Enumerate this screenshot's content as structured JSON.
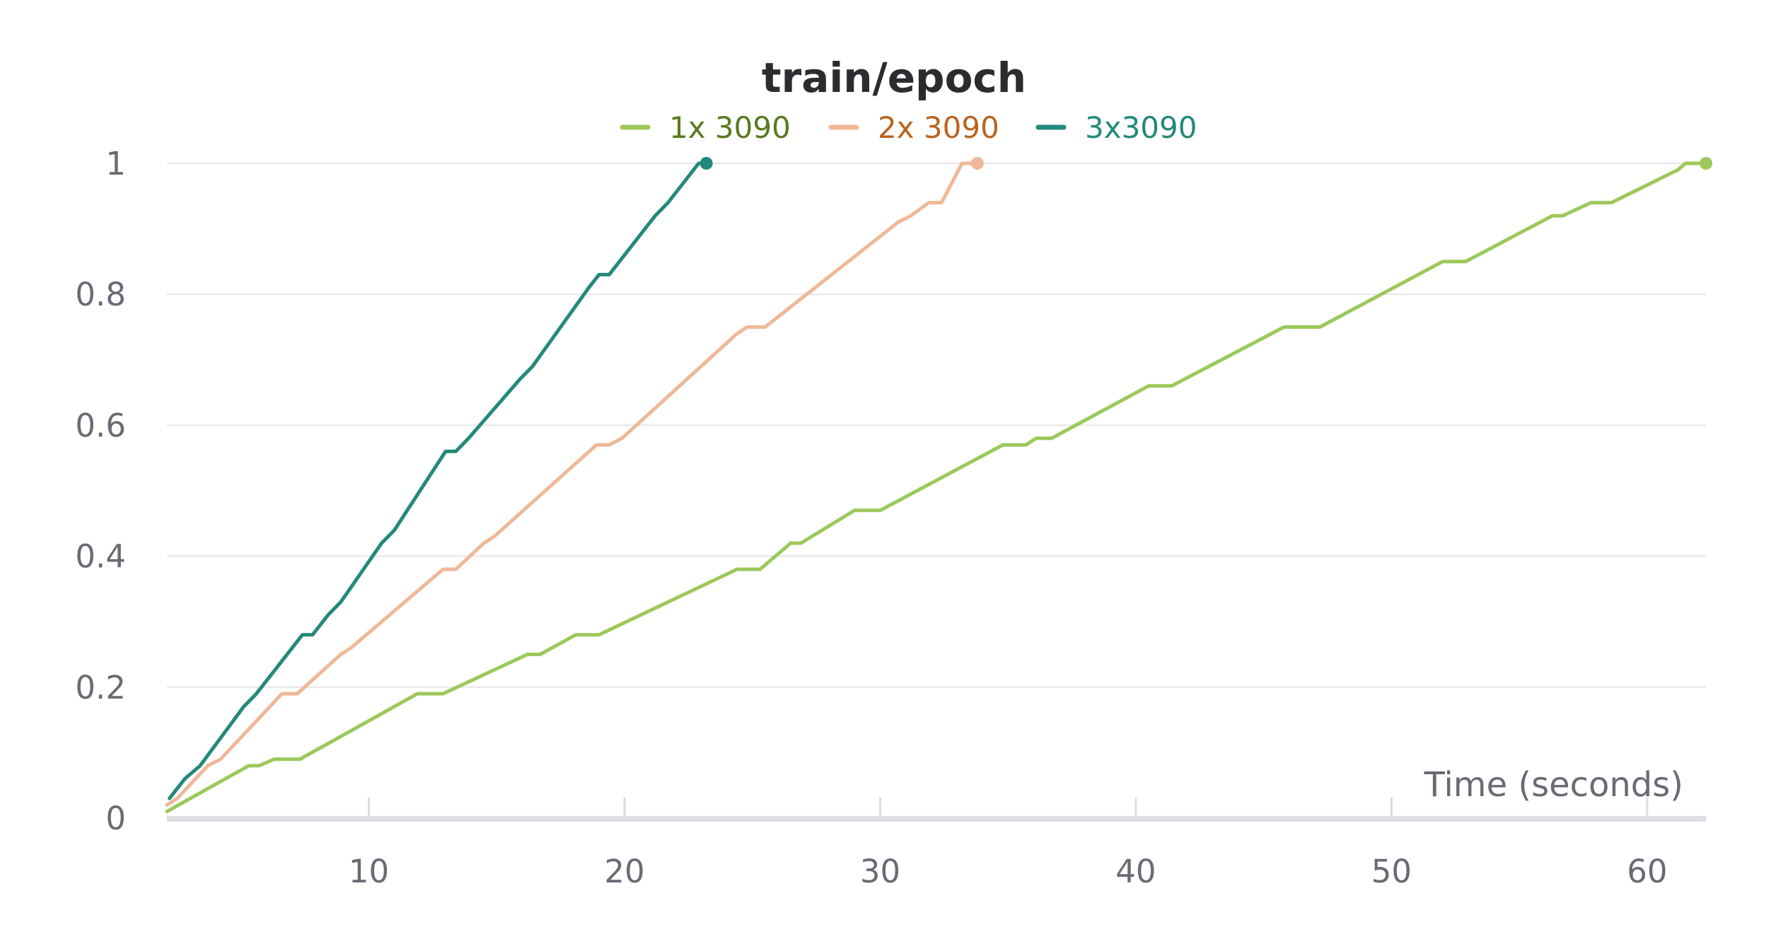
{
  "chart_data": {
    "type": "line",
    "title": "train/epoch",
    "xlabel": "Time (seconds)",
    "ylabel": "",
    "xlim": [
      2.1,
      62.3
    ],
    "ylim": [
      0,
      1
    ],
    "xticks": [
      10,
      20,
      30,
      40,
      50,
      60
    ],
    "yticks": [
      0,
      0.2,
      0.4,
      0.6,
      0.8,
      1
    ],
    "ytick_labels": [
      "0",
      "0.2",
      "0.4",
      "0.6",
      "0.8",
      "1"
    ],
    "grid": true,
    "legend_position": "top-center",
    "series": [
      {
        "name": "1x 3090",
        "color": "#9dc85a",
        "label_color": "#5a7a1e",
        "x": [
          2.1,
          5.3,
          5.7,
          6.3,
          7.3,
          11.9,
          12.9,
          16.2,
          16.7,
          18.1,
          19.0,
          24.4,
          25.3,
          26.5,
          26.9,
          29.0,
          30.0,
          34.8,
          35.7,
          36.1,
          36.4,
          36.7,
          40.5,
          41.4,
          45.8,
          47.2,
          52.0,
          52.9,
          56.3,
          56.7,
          57.8,
          58.6,
          61.2,
          61.5,
          62.3
        ],
        "y": [
          0.01,
          0.08,
          0.08,
          0.09,
          0.09,
          0.19,
          0.19,
          0.25,
          0.25,
          0.28,
          0.28,
          0.38,
          0.38,
          0.42,
          0.42,
          0.47,
          0.47,
          0.57,
          0.57,
          0.58,
          0.58,
          0.58,
          0.66,
          0.66,
          0.75,
          0.75,
          0.85,
          0.85,
          0.92,
          0.92,
          0.94,
          0.94,
          0.99,
          1.0,
          1.0
        ]
      },
      {
        "name": "2x 3090",
        "color": "#efb897",
        "label_color": "#b9641f",
        "x": [
          2.1,
          2.5,
          3.7,
          4.2,
          6.6,
          7.2,
          8.9,
          9.3,
          12.9,
          13.4,
          14.5,
          14.9,
          18.9,
          19.4,
          19.9,
          24.4,
          24.8,
          25.5,
          30.7,
          31.2,
          31.9,
          32.4,
          33.2,
          33.8
        ],
        "y": [
          0.02,
          0.03,
          0.08,
          0.09,
          0.19,
          0.19,
          0.25,
          0.26,
          0.38,
          0.38,
          0.42,
          0.43,
          0.57,
          0.57,
          0.58,
          0.74,
          0.75,
          0.75,
          0.91,
          0.92,
          0.94,
          0.94,
          1.0,
          1.0
        ]
      },
      {
        "name": "3x3090",
        "color": "#23897b",
        "label_color": "#23897b",
        "x": [
          2.2,
          2.8,
          3.4,
          5.1,
          5.6,
          7.4,
          7.8,
          8.4,
          8.9,
          10.5,
          11.0,
          13.0,
          13.4,
          13.9,
          15.9,
          16.4,
          18.6,
          19.0,
          19.4,
          21.2,
          21.7,
          22.9,
          23.2
        ],
        "y": [
          0.03,
          0.06,
          0.08,
          0.17,
          0.19,
          0.28,
          0.28,
          0.31,
          0.33,
          0.42,
          0.44,
          0.56,
          0.56,
          0.58,
          0.67,
          0.69,
          0.81,
          0.83,
          0.83,
          0.92,
          0.94,
          1.0,
          1.0
        ]
      }
    ]
  }
}
